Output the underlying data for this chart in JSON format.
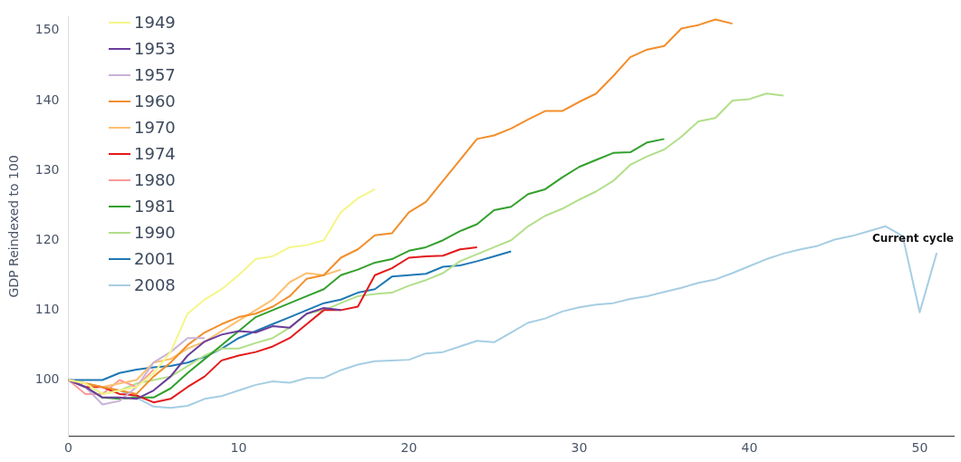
{
  "chart_data": {
    "type": "line",
    "ylabel": "GDP Reindexed to 100",
    "xlim": [
      0,
      52
    ],
    "xticks": [
      0,
      10,
      20,
      30,
      40,
      50
    ],
    "ylim": [
      92,
      152
    ],
    "yticks": [
      100,
      110,
      120,
      130,
      140,
      150
    ],
    "grid": false,
    "legend": "top left",
    "marker": "none",
    "line_style": "solid",
    "annotations": [
      "Current cycle"
    ],
    "x": [
      0,
      1,
      2,
      3,
      4,
      5,
      6,
      7,
      8,
      9,
      10,
      11,
      12,
      13,
      14,
      15,
      16,
      17,
      18,
      19,
      20,
      21,
      22,
      23,
      24,
      25,
      26,
      27,
      28,
      29,
      30,
      31,
      32,
      33,
      34,
      35,
      36,
      37,
      38,
      39,
      40,
      41,
      42,
      43,
      44,
      45,
      46,
      47,
      48,
      49,
      50,
      51
    ],
    "series": [
      {
        "name": "1949",
        "color": "#f5f58a",
        "values": [
          100,
          99.5,
          98,
          98.5,
          99,
          101,
          104,
          109.5,
          111.5,
          113,
          115,
          117.3,
          117.7,
          119,
          119.3,
          120,
          124,
          126,
          127.3,
          null,
          null,
          null,
          null,
          null,
          null,
          null,
          null,
          null,
          null,
          null,
          null,
          null,
          null,
          null,
          null,
          null,
          null,
          null,
          null,
          null,
          null,
          null,
          null,
          null,
          null,
          null,
          null,
          null,
          null,
          null,
          null,
          null
        ]
      },
      {
        "name": "1953",
        "color": "#6a3d9a",
        "values": [
          100,
          99,
          97.5,
          97.5,
          97.3,
          98.5,
          100.5,
          103.5,
          105.5,
          106.5,
          107,
          106.8,
          107.7,
          107.5,
          109.5,
          110.3,
          110,
          null,
          null,
          null,
          null,
          null,
          null,
          null,
          null,
          null,
          null,
          null,
          null,
          null,
          null,
          null,
          null,
          null,
          null,
          null,
          null,
          null,
          null,
          null,
          null,
          null,
          null,
          null,
          null,
          null,
          null,
          null,
          null,
          null,
          null,
          null
        ]
      },
      {
        "name": "1957",
        "color": "#cab2d6",
        "values": [
          100,
          99,
          96.5,
          97,
          99,
          102.5,
          104,
          106,
          106,
          null,
          null,
          null,
          null,
          null,
          null,
          null,
          null,
          null,
          null,
          null,
          null,
          null,
          null,
          null,
          null,
          null,
          null,
          null,
          null,
          null,
          null,
          null,
          null,
          null,
          null,
          null,
          null,
          null,
          null,
          null,
          null,
          null,
          null,
          null,
          null,
          null,
          null,
          null,
          null,
          null,
          null,
          null
        ]
      },
      {
        "name": "1960",
        "color": "#f28e2b",
        "values": [
          100,
          99.5,
          99,
          98.5,
          98,
          100.5,
          102.5,
          105,
          106.8,
          108,
          109,
          109.5,
          110.5,
          112,
          114.5,
          115,
          117.5,
          118.7,
          120.7,
          121,
          124,
          125.5,
          128.5,
          131.5,
          134.5,
          135,
          136,
          137.3,
          138.5,
          138.5,
          139.8,
          141,
          143.5,
          146.2,
          147.3,
          147.8,
          150.3,
          150.8,
          151.6,
          151,
          null,
          null,
          null,
          null,
          null,
          null,
          null,
          null,
          null,
          null,
          null,
          null
        ]
      },
      {
        "name": "1970",
        "color": "#fdbf6f",
        "values": [
          100,
          99.5,
          99,
          99.5,
          100,
          102.5,
          103,
          104.5,
          105.5,
          107,
          108.5,
          110,
          111.5,
          114,
          115.3,
          115,
          115.8,
          null,
          null,
          null,
          null,
          null,
          null,
          null,
          null,
          null,
          null,
          null,
          null,
          null,
          null,
          null,
          null,
          null,
          null,
          null,
          null,
          null,
          null,
          null,
          null,
          null,
          null,
          null,
          null,
          null,
          null,
          null,
          null,
          null,
          null,
          null
        ]
      },
      {
        "name": "1974",
        "color": "#e31a1c",
        "values": [
          100,
          99,
          99,
          98,
          97.8,
          96.8,
          97.3,
          99,
          100.5,
          102.8,
          103.5,
          104,
          104.8,
          106,
          108,
          110,
          110,
          110.5,
          115,
          116,
          117.5,
          117.7,
          117.8,
          118.7,
          119,
          null,
          null,
          null,
          null,
          null,
          null,
          null,
          null,
          null,
          null,
          null,
          null,
          null,
          null,
          null,
          null,
          null,
          null,
          null,
          null,
          null,
          null,
          null,
          null,
          null,
          null,
          null
        ]
      },
      {
        "name": "1980",
        "color": "#fb9a99",
        "values": [
          100,
          98,
          98,
          100,
          99,
          101.5,
          null,
          null,
          null,
          null,
          null,
          null,
          null,
          null,
          null,
          null,
          null,
          null,
          null,
          null,
          null,
          null,
          null,
          null,
          null,
          null,
          null,
          null,
          null,
          null,
          null,
          null,
          null,
          null,
          null,
          null,
          null,
          null,
          null,
          null,
          null,
          null,
          null,
          null,
          null,
          null,
          null,
          null,
          null,
          null,
          null,
          null
        ]
      },
      {
        "name": "1981",
        "color": "#33a02c",
        "values": [
          100,
          99,
          97.5,
          97.3,
          97.5,
          97.5,
          98.8,
          101,
          103,
          105,
          107,
          109,
          110,
          111,
          112,
          113,
          115,
          115.8,
          116.8,
          117.3,
          118.5,
          119,
          120,
          121.3,
          122.3,
          124.3,
          124.8,
          126.6,
          127.3,
          129,
          130.5,
          131.5,
          132.5,
          132.6,
          134,
          134.5,
          null,
          null,
          null,
          null,
          null,
          null,
          null,
          null,
          null,
          null,
          null,
          null,
          null,
          null,
          null,
          null
        ]
      },
      {
        "name": "1990",
        "color": "#b2df8a",
        "values": [
          100,
          99.5,
          98,
          98.5,
          99.5,
          100,
          100.5,
          102,
          103.5,
          104.5,
          104.5,
          105.3,
          106,
          107.5,
          109.5,
          110,
          111,
          112,
          112.3,
          112.5,
          113.5,
          114.3,
          115.3,
          117,
          118,
          119,
          120,
          122,
          123.5,
          124.5,
          125.8,
          127,
          128.5,
          130.8,
          132,
          133,
          134.8,
          137,
          137.5,
          140,
          140.2,
          141,
          140.7,
          null,
          null,
          null,
          null,
          null,
          null,
          null,
          null,
          null
        ]
      },
      {
        "name": "2001",
        "color": "#1f78b4",
        "values": [
          100,
          100,
          100,
          101,
          101.5,
          101.8,
          102,
          102.5,
          103.3,
          104.5,
          106,
          107,
          108,
          109,
          110,
          111,
          111.5,
          112.5,
          113,
          114.8,
          115,
          115.2,
          116.2,
          116.4,
          117,
          117.7,
          118.4,
          null,
          null,
          null,
          null,
          null,
          null,
          null,
          null,
          null,
          null,
          null,
          null,
          null,
          null,
          null,
          null,
          null,
          null,
          null,
          null,
          null,
          null,
          null,
          null,
          null
        ]
      },
      {
        "name": "2008",
        "color": "#a6cee3",
        "values": [
          100,
          99.5,
          99,
          98.5,
          97.5,
          96.2,
          96,
          96.3,
          97.3,
          97.7,
          98.5,
          99.3,
          99.8,
          99.6,
          100.3,
          100.3,
          101.4,
          102.2,
          102.7,
          102.8,
          102.9,
          103.8,
          104,
          104.8,
          105.6,
          105.4,
          106.8,
          108.2,
          108.8,
          109.8,
          110.4,
          110.8,
          111,
          111.6,
          112,
          112.6,
          113.2,
          113.9,
          114.4,
          115.3,
          116.3,
          117.3,
          118.1,
          118.7,
          119.2,
          120.1,
          120.6,
          121.3,
          122,
          120.6,
          109.7,
          118.2
        ]
      }
    ]
  }
}
